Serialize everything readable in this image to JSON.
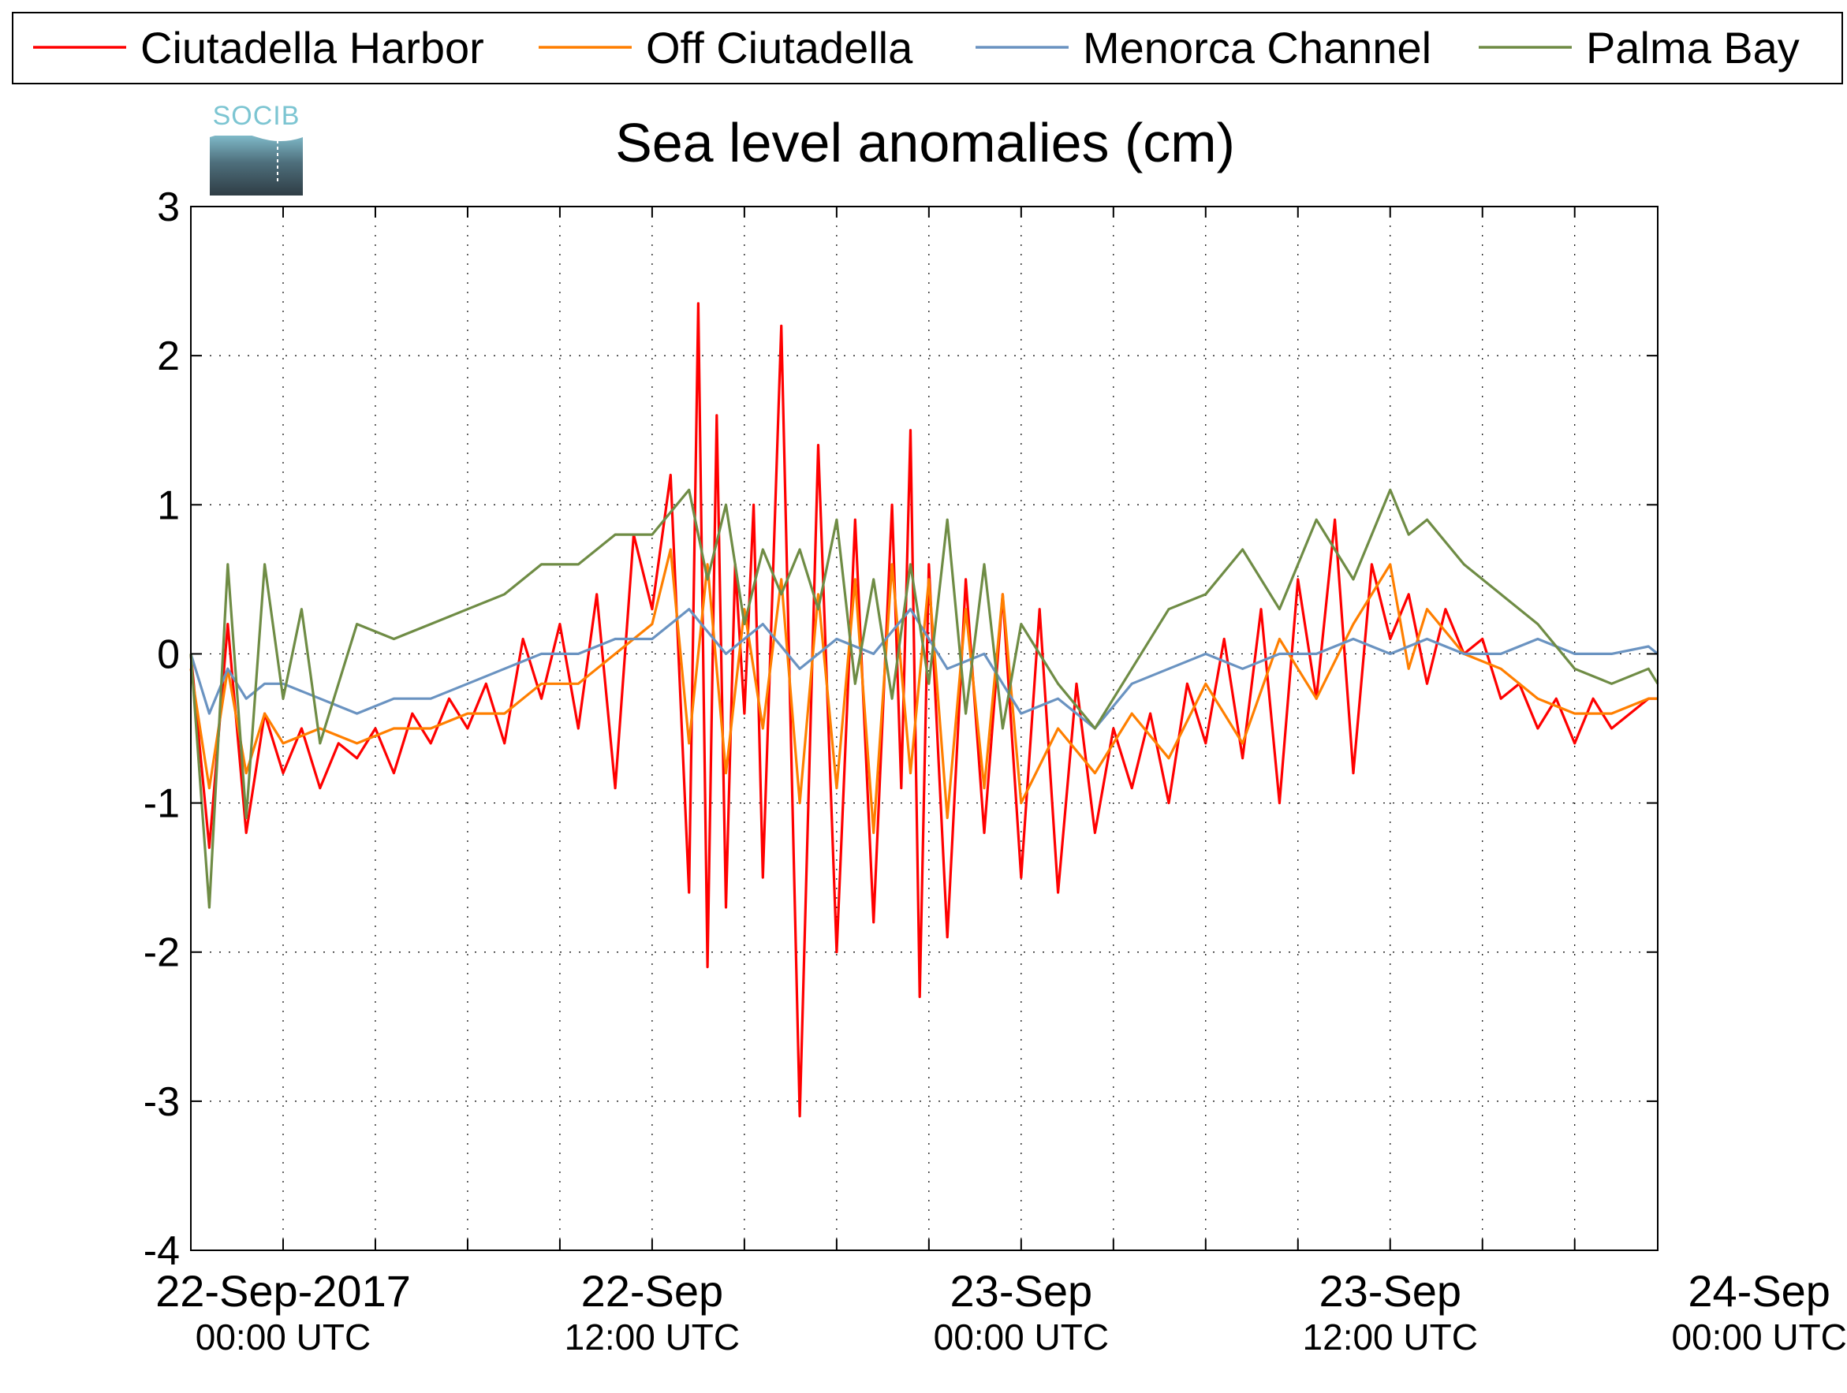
{
  "colors": {
    "Ciutadella Harbor": "#ff0000",
    "Off Ciutadella": "#ff7f00",
    "Menorca Channel": "#6a93c1",
    "Palma Bay": "#6f8c45"
  },
  "logo": {
    "text": "SOCIB"
  },
  "chart_data": {
    "type": "line",
    "title": "Sea level anomalies (cm)",
    "xlabel": "",
    "ylabel": "",
    "ylim": [
      -4,
      3
    ],
    "xlim_hours": [
      -10,
      149
    ],
    "grid": true,
    "legend_position": "top",
    "y_ticks": [
      3,
      2,
      1,
      0,
      -1,
      -2,
      -3,
      -4
    ],
    "x_ticks": [
      {
        "line1": "22-Sep-2017",
        "line2": "00:00 UTC",
        "hours": 0
      },
      {
        "line1": "22-Sep",
        "line2": "12:00 UTC",
        "hours": 40
      },
      {
        "line1": "23-Sep",
        "line2": "00:00 UTC",
        "hours": 80
      },
      {
        "line1": "23-Sep",
        "line2": "12:00 UTC",
        "hours": 120
      },
      {
        "line1": "24-Sep",
        "line2": "00:00 UTC",
        "hours": 160
      }
    ],
    "series": [
      {
        "name": "Ciutadella Harbor",
        "x": [
          -10,
          -8,
          -6,
          -4,
          -2,
          0,
          2,
          4,
          6,
          8,
          10,
          12,
          14,
          16,
          18,
          20,
          22,
          24,
          26,
          28,
          30,
          32,
          34,
          36,
          38,
          40,
          42,
          44,
          45,
          46,
          47,
          48,
          49,
          50,
          51,
          52,
          54,
          56,
          58,
          60,
          62,
          64,
          66,
          67,
          68,
          69,
          70,
          72,
          74,
          76,
          78,
          80,
          82,
          84,
          86,
          88,
          90,
          92,
          94,
          96,
          98,
          100,
          102,
          104,
          106,
          108,
          110,
          112,
          114,
          116,
          118,
          120,
          122,
          124,
          126,
          128,
          130,
          132,
          134,
          136,
          138,
          140,
          142,
          144,
          146,
          148,
          149
        ],
        "y": [
          0.0,
          -1.3,
          0.2,
          -1.2,
          -0.4,
          -0.8,
          -0.5,
          -0.9,
          -0.6,
          -0.7,
          -0.5,
          -0.8,
          -0.4,
          -0.6,
          -0.3,
          -0.5,
          -0.2,
          -0.6,
          0.1,
          -0.3,
          0.2,
          -0.5,
          0.4,
          -0.9,
          0.8,
          0.3,
          1.2,
          -1.6,
          2.35,
          -2.1,
          1.6,
          -1.7,
          0.6,
          -0.4,
          1.0,
          -1.5,
          2.2,
          -3.1,
          1.4,
          -2.0,
          0.9,
          -1.8,
          1.0,
          -0.9,
          1.5,
          -2.3,
          0.6,
          -1.9,
          0.5,
          -1.2,
          0.4,
          -1.5,
          0.3,
          -1.6,
          -0.2,
          -1.2,
          -0.5,
          -0.9,
          -0.4,
          -1.0,
          -0.2,
          -0.6,
          0.1,
          -0.7,
          0.3,
          -1.0,
          0.5,
          -0.3,
          0.9,
          -0.8,
          0.6,
          0.1,
          0.4,
          -0.2,
          0.3,
          0.0,
          0.1,
          -0.3,
          -0.2,
          -0.5,
          -0.3,
          -0.6,
          -0.3,
          -0.5,
          -0.4,
          -0.3,
          -0.3
        ]
      },
      {
        "name": "Off Ciutadella",
        "x": [
          -10,
          -8,
          -6,
          -4,
          -2,
          0,
          4,
          8,
          12,
          16,
          20,
          24,
          28,
          32,
          36,
          40,
          42,
          44,
          46,
          48,
          50,
          52,
          54,
          56,
          58,
          60,
          62,
          64,
          66,
          68,
          70,
          72,
          74,
          76,
          78,
          80,
          84,
          88,
          92,
          96,
          100,
          104,
          108,
          112,
          116,
          120,
          122,
          124,
          128,
          132,
          136,
          140,
          144,
          148,
          149
        ],
        "y": [
          -0.1,
          -0.9,
          -0.1,
          -0.8,
          -0.4,
          -0.6,
          -0.5,
          -0.6,
          -0.5,
          -0.5,
          -0.4,
          -0.4,
          -0.2,
          -0.2,
          0.0,
          0.2,
          0.7,
          -0.6,
          0.6,
          -0.8,
          0.3,
          -0.5,
          0.5,
          -1.0,
          0.4,
          -0.9,
          0.5,
          -1.2,
          0.6,
          -0.8,
          0.5,
          -1.1,
          0.3,
          -0.9,
          0.4,
          -1.0,
          -0.5,
          -0.8,
          -0.4,
          -0.7,
          -0.2,
          -0.6,
          0.1,
          -0.3,
          0.2,
          0.6,
          -0.1,
          0.3,
          0.0,
          -0.1,
          -0.3,
          -0.4,
          -0.4,
          -0.3,
          -0.3
        ]
      },
      {
        "name": "Menorca Channel",
        "x": [
          -10,
          -8,
          -6,
          -4,
          -2,
          0,
          4,
          8,
          12,
          16,
          20,
          24,
          28,
          32,
          36,
          40,
          44,
          48,
          52,
          56,
          60,
          64,
          68,
          72,
          76,
          80,
          84,
          88,
          92,
          96,
          100,
          104,
          108,
          112,
          116,
          120,
          124,
          128,
          132,
          136,
          140,
          144,
          148,
          149
        ],
        "y": [
          0.0,
          -0.4,
          -0.1,
          -0.3,
          -0.2,
          -0.2,
          -0.3,
          -0.4,
          -0.3,
          -0.3,
          -0.2,
          -0.1,
          0.0,
          0.0,
          0.1,
          0.1,
          0.3,
          0.0,
          0.2,
          -0.1,
          0.1,
          0.0,
          0.3,
          -0.1,
          0.0,
          -0.4,
          -0.3,
          -0.5,
          -0.2,
          -0.1,
          0.0,
          -0.1,
          0.0,
          0.0,
          0.1,
          0.0,
          0.1,
          0.0,
          0.0,
          0.1,
          0.0,
          0.0,
          0.05,
          0.0
        ]
      },
      {
        "name": "Palma Bay",
        "x": [
          -10,
          -8,
          -6,
          -4,
          -2,
          0,
          2,
          4,
          8,
          12,
          16,
          20,
          24,
          28,
          32,
          36,
          40,
          44,
          46,
          48,
          50,
          52,
          54,
          56,
          58,
          60,
          62,
          64,
          66,
          68,
          70,
          72,
          74,
          76,
          78,
          80,
          84,
          88,
          92,
          96,
          100,
          104,
          108,
          112,
          116,
          120,
          122,
          124,
          128,
          132,
          136,
          140,
          144,
          148,
          149
        ],
        "y": [
          0.0,
          -1.7,
          0.6,
          -1.1,
          0.6,
          -0.3,
          0.3,
          -0.6,
          0.2,
          0.1,
          0.2,
          0.3,
          0.4,
          0.6,
          0.6,
          0.8,
          0.8,
          1.1,
          0.5,
          1.0,
          0.2,
          0.7,
          0.4,
          0.7,
          0.3,
          0.9,
          -0.2,
          0.5,
          -0.3,
          0.6,
          -0.2,
          0.9,
          -0.4,
          0.6,
          -0.5,
          0.2,
          -0.2,
          -0.5,
          -0.1,
          0.3,
          0.4,
          0.7,
          0.3,
          0.9,
          0.5,
          1.1,
          0.8,
          0.9,
          0.6,
          0.4,
          0.2,
          -0.1,
          -0.2,
          -0.1,
          -0.2
        ]
      }
    ]
  }
}
